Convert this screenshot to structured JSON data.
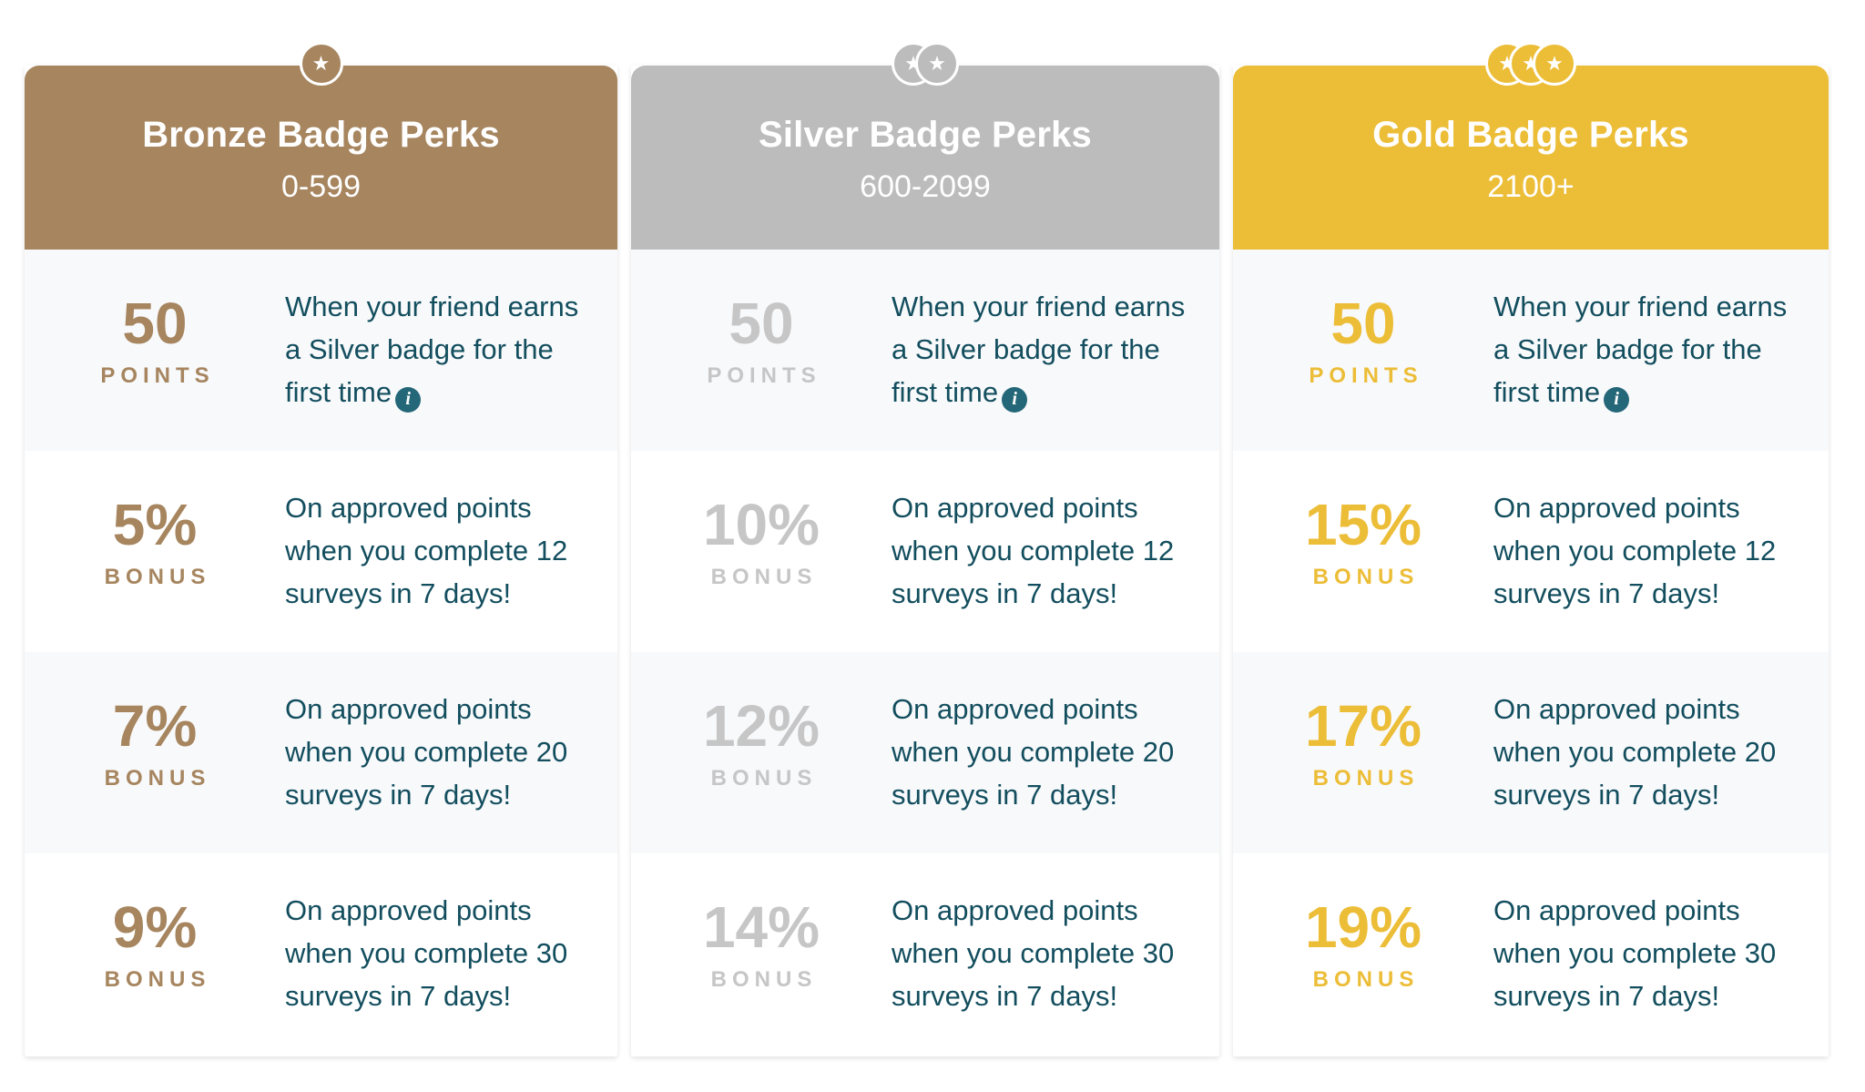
{
  "tiers": [
    {
      "title": "Bronze Badge Perks",
      "range": "0-599",
      "perks": [
        {
          "value": "50",
          "unit": "POINTS",
          "desc": "When your friend earns a Silver badge for the first time"
        },
        {
          "value": "5%",
          "unit": "BONUS",
          "desc": "On approved points when you complete 12 surveys in 7 days!"
        },
        {
          "value": "7%",
          "unit": "BONUS",
          "desc": "On approved points when you complete 20 surveys in 7 days!"
        },
        {
          "value": "9%",
          "unit": "BONUS",
          "desc": "On approved points when you complete 30 surveys in 7 days!"
        }
      ]
    },
    {
      "title": "Silver Badge Perks",
      "range": "600-2099",
      "perks": [
        {
          "value": "50",
          "unit": "POINTS",
          "desc": "When your friend earns a Silver badge for the first time"
        },
        {
          "value": "10%",
          "unit": "BONUS",
          "desc": "On approved points when you complete 12 surveys in 7 days!"
        },
        {
          "value": "12%",
          "unit": "BONUS",
          "desc": "On approved points when you complete 20 surveys in 7 days!"
        },
        {
          "value": "14%",
          "unit": "BONUS",
          "desc": "On approved points when you complete 30 surveys in 7 days!"
        }
      ]
    },
    {
      "title": "Gold Badge Perks",
      "range": "2100+",
      "perks": [
        {
          "value": "50",
          "unit": "POINTS",
          "desc": "When your friend earns a Silver badge for the first time"
        },
        {
          "value": "15%",
          "unit": "BONUS",
          "desc": "On approved points when you complete 12 surveys in 7 days!"
        },
        {
          "value": "17%",
          "unit": "BONUS",
          "desc": "On approved points when you complete 20 surveys in 7 days!"
        },
        {
          "value": "19%",
          "unit": "BONUS",
          "desc": "On approved points when you complete 30 surveys in 7 days!"
        }
      ]
    }
  ],
  "icons": {
    "badge_coin": "star-coin-icon",
    "info": "info-icon",
    "info_glyph": "i",
    "star_glyph": "★"
  },
  "colors": {
    "bronze": "#a6855f",
    "silver": "#bcbcbc",
    "gold": "#ecbd37",
    "text": "#134e5e",
    "info_icon": "#246778",
    "row_shade": "#f8f9fb"
  }
}
